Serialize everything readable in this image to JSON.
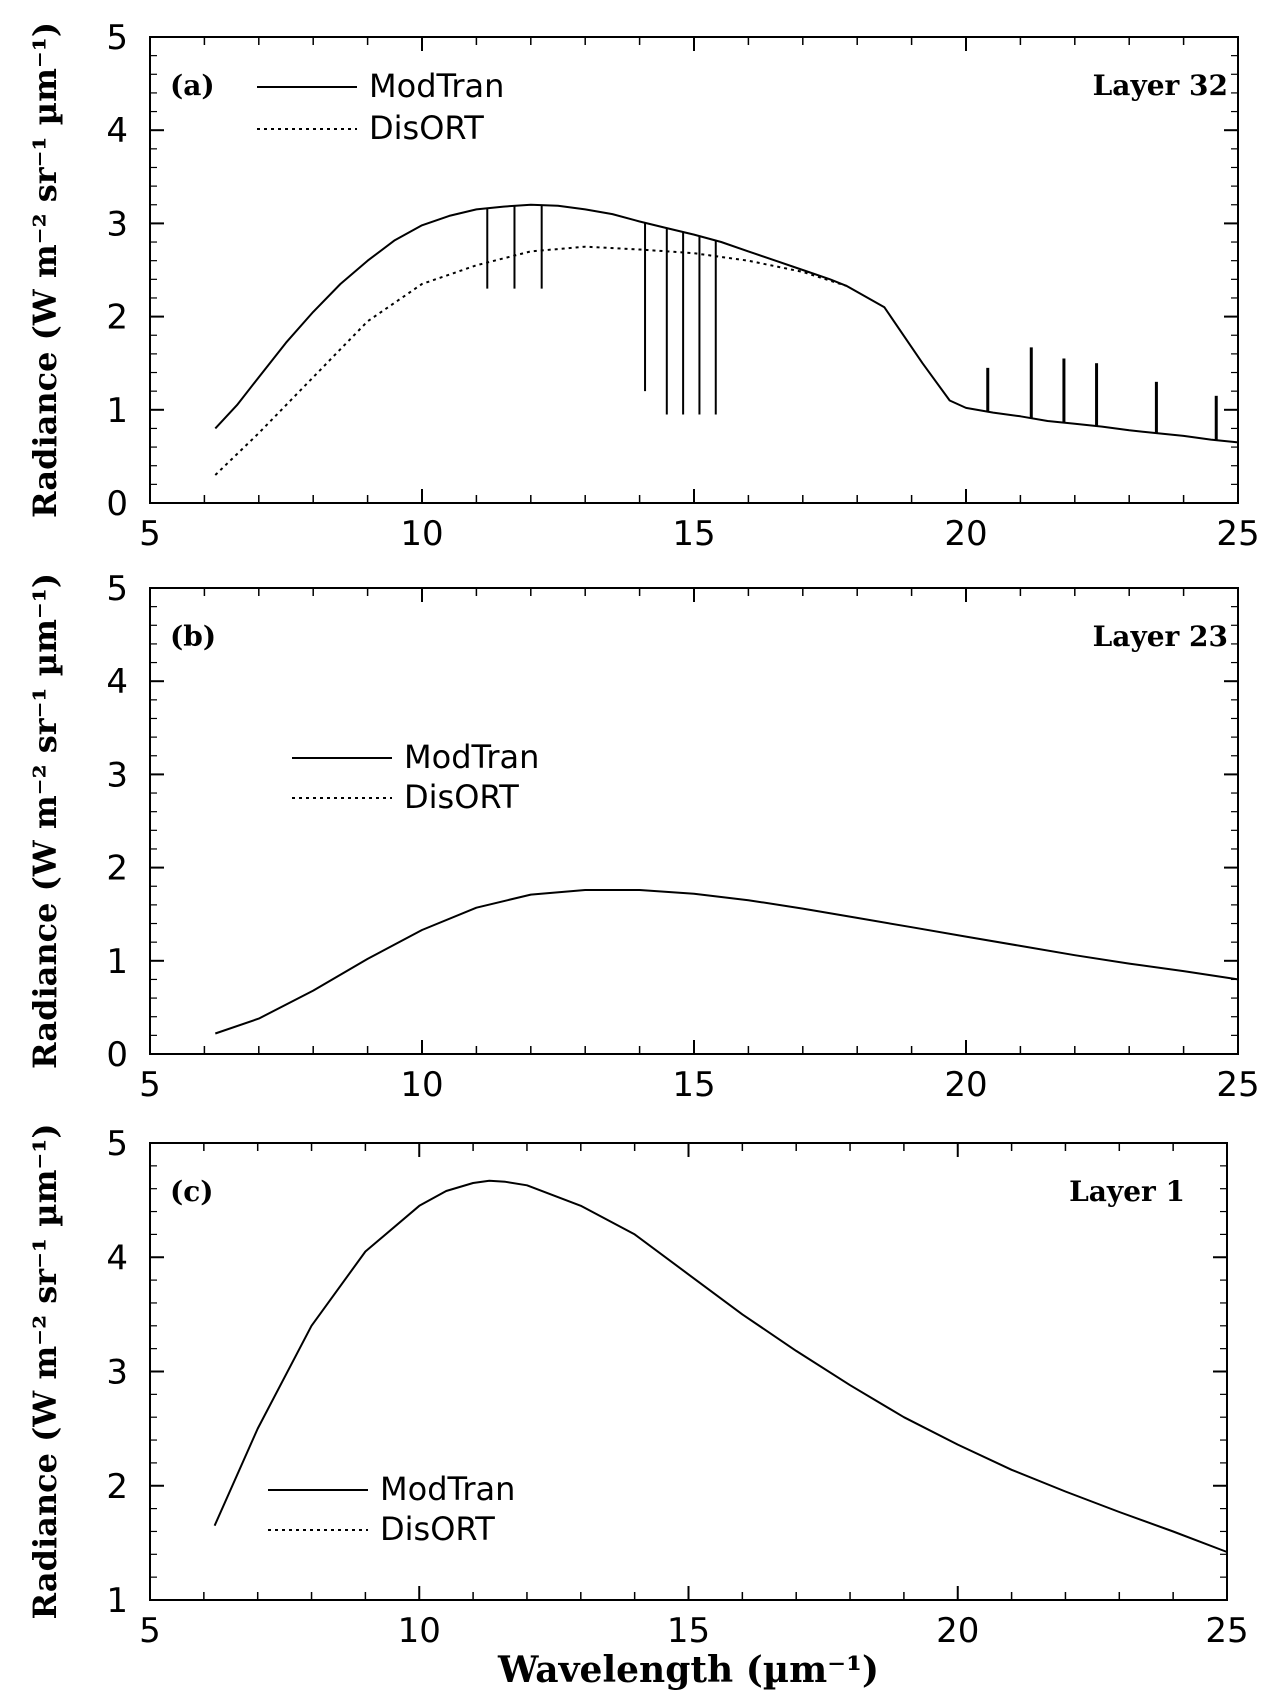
{
  "chart_data": [
    {
      "type": "line",
      "panel_label": "(a)",
      "layer_label": "Layer 32",
      "ylabel": "Radiance (W m⁻² sr⁻¹ µm⁻¹)",
      "xlabel": "",
      "xlim": [
        5,
        25
      ],
      "ylim": [
        0,
        5
      ],
      "xticks": [
        5,
        10,
        15,
        20,
        25
      ],
      "yticks": [
        0,
        1,
        2,
        3,
        4,
        5
      ],
      "legend": [
        "ModTran",
        "DisORT"
      ],
      "series": [
        {
          "name": "ModTran",
          "style": "solid",
          "x": [
            6.2,
            6.6,
            7,
            7.5,
            8,
            8.5,
            9,
            9.5,
            10,
            10.5,
            11,
            11.5,
            12,
            12.5,
            13,
            13.5,
            14,
            14.5,
            15,
            15.5,
            16,
            16.5,
            17,
            17.5,
            17.8,
            18.5,
            19.2,
            19.7,
            20,
            20.5,
            21,
            21.5,
            22,
            22.5,
            23,
            23.5,
            24,
            24.5,
            25
          ],
          "y": [
            0.8,
            1.05,
            1.35,
            1.72,
            2.05,
            2.35,
            2.6,
            2.82,
            2.98,
            3.08,
            3.15,
            3.18,
            3.2,
            3.19,
            3.15,
            3.1,
            3.02,
            2.95,
            2.88,
            2.8,
            2.7,
            2.6,
            2.5,
            2.4,
            2.33,
            2.1,
            1.5,
            1.1,
            1.02,
            0.97,
            0.93,
            0.88,
            0.85,
            0.82,
            0.78,
            0.75,
            0.72,
            0.68,
            0.65
          ],
          "absorption_dips": [
            {
              "x": 11.2,
              "y": 2.3
            },
            {
              "x": 11.7,
              "y": 2.3
            },
            {
              "x": 12.2,
              "y": 2.3
            },
            {
              "x": 14.1,
              "y": 1.2
            },
            {
              "x": 14.5,
              "y": 0.95
            },
            {
              "x": 14.8,
              "y": 0.95
            },
            {
              "x": 15.1,
              "y": 0.95
            },
            {
              "x": 15.4,
              "y": 0.95
            }
          ],
          "emission_peaks": [
            {
              "x": 20.4,
              "y": 1.45
            },
            {
              "x": 21.2,
              "y": 1.67
            },
            {
              "x": 21.8,
              "y": 1.55
            },
            {
              "x": 22.4,
              "y": 1.5
            },
            {
              "x": 23.5,
              "y": 1.3
            },
            {
              "x": 24.6,
              "y": 1.15
            }
          ]
        },
        {
          "name": "DisORT",
          "style": "dotted",
          "x": [
            6.2,
            7,
            8,
            9,
            10,
            11,
            12,
            13,
            14,
            15,
            16,
            17,
            17.8
          ],
          "y": [
            0.3,
            0.75,
            1.35,
            1.95,
            2.35,
            2.55,
            2.7,
            2.75,
            2.72,
            2.68,
            2.6,
            2.48,
            2.33
          ]
        }
      ]
    },
    {
      "type": "line",
      "panel_label": "(b)",
      "layer_label": "Layer 23",
      "ylabel": "Radiance (W m⁻² sr⁻¹ µm⁻¹)",
      "xlabel": "",
      "xlim": [
        5,
        25
      ],
      "ylim": [
        0,
        5
      ],
      "xticks": [
        5,
        10,
        15,
        20,
        25
      ],
      "yticks": [
        0,
        1,
        2,
        3,
        4,
        5
      ],
      "legend": [
        "ModTran",
        "DisORT"
      ],
      "series": [
        {
          "name": "ModTran",
          "style": "solid",
          "x": [
            6.2,
            7,
            8,
            9,
            10,
            11,
            12,
            13,
            14,
            15,
            16,
            17,
            18,
            19,
            20,
            21,
            22,
            23,
            24,
            25
          ],
          "y": [
            0.22,
            0.38,
            0.68,
            1.02,
            1.33,
            1.57,
            1.71,
            1.76,
            1.76,
            1.72,
            1.65,
            1.56,
            1.46,
            1.36,
            1.26,
            1.16,
            1.06,
            0.97,
            0.89,
            0.8
          ]
        }
      ]
    },
    {
      "type": "line",
      "panel_label": "(c)",
      "layer_label": "Layer 1",
      "ylabel": "Radiance (W m⁻² sr⁻¹ µm⁻¹)",
      "xlabel": "Wavelength (µm⁻¹)",
      "xlim": [
        5,
        25
      ],
      "ylim": [
        1,
        5
      ],
      "xticks": [
        5,
        10,
        15,
        20,
        25
      ],
      "yticks": [
        1,
        2,
        3,
        4,
        5
      ],
      "legend": [
        "ModTran",
        "DisORT"
      ],
      "series": [
        {
          "name": "ModTran",
          "style": "solid",
          "x": [
            6.2,
            7,
            8,
            9,
            10,
            10.5,
            11,
            11.3,
            11.6,
            12,
            13,
            14,
            15,
            16,
            17,
            18,
            19,
            20,
            21,
            22,
            23,
            24,
            25
          ],
          "y": [
            1.65,
            2.5,
            3.4,
            4.05,
            4.45,
            4.58,
            4.65,
            4.67,
            4.66,
            4.63,
            4.45,
            4.2,
            3.85,
            3.5,
            3.18,
            2.88,
            2.6,
            2.36,
            2.14,
            1.95,
            1.77,
            1.6,
            1.42
          ]
        }
      ]
    }
  ]
}
